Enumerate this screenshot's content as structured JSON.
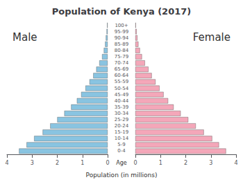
{
  "chart_data": {
    "type": "bar",
    "orientation": "horizontal",
    "title": "Population of Kenya (2017)",
    "xlabel": "Population (in millions)",
    "ylabel": "Age",
    "categories": [
      "100+",
      "95-99",
      "90-94",
      "85-89",
      "80-84",
      "75-79",
      "70-74",
      "65-69",
      "60-64",
      "55-59",
      "50-54",
      "45-49",
      "40-44",
      "35-39",
      "30-34",
      "25-29",
      "20-24",
      "15-19",
      "10-14",
      "5-9",
      "0-4"
    ],
    "series": [
      {
        "name": "Male",
        "color": "#89C4E1",
        "values": [
          0.02,
          0.04,
          0.07,
          0.1,
          0.15,
          0.22,
          0.33,
          0.45,
          0.57,
          0.72,
          0.88,
          1.05,
          1.22,
          1.45,
          1.72,
          2.0,
          2.28,
          2.58,
          2.92,
          3.22,
          3.52
        ]
      },
      {
        "name": "Female",
        "color": "#F4A7B9",
        "values": [
          0.02,
          0.05,
          0.08,
          0.12,
          0.18,
          0.26,
          0.38,
          0.52,
          0.65,
          0.8,
          0.96,
          1.12,
          1.3,
          1.52,
          1.8,
          2.1,
          2.4,
          2.72,
          3.05,
          3.32,
          3.6
        ]
      }
    ],
    "xlim": [
      0,
      4
    ],
    "xticks": [
      0,
      1,
      2,
      3,
      4
    ],
    "grid": false
  }
}
